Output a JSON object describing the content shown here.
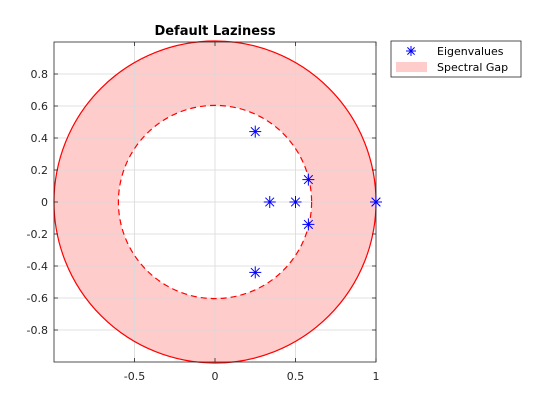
{
  "chart_data": {
    "type": "scatter",
    "title": "Default Laziness",
    "xlabel": "",
    "ylabel": "",
    "xlim": [
      -1,
      1
    ],
    "ylim": [
      -1,
      1
    ],
    "xticks": [
      -0.5,
      0,
      0.5,
      1
    ],
    "xtick_labels": [
      "-0.5",
      "0",
      "0.5",
      "1"
    ],
    "yticks": [
      0.8,
      0.6,
      0.4,
      0.2,
      0,
      -0.2,
      -0.4,
      -0.6,
      -0.8
    ],
    "ytick_labels": [
      "0.8",
      "0.6",
      "0.4",
      "0.2",
      "0",
      "-0.2",
      "-0.4",
      "-0.6",
      "-0.8"
    ],
    "grid": true,
    "legend_position": "outside-top-right",
    "series": [
      {
        "name": "Eigenvalues",
        "marker": "asterisk",
        "color": "#0000ff",
        "points": [
          {
            "x": 0.25,
            "y": 0.44
          },
          {
            "x": 0.34,
            "y": 0.0
          },
          {
            "x": 0.5,
            "y": 0.0
          },
          {
            "x": 0.58,
            "y": 0.14
          },
          {
            "x": 0.58,
            "y": -0.14
          },
          {
            "x": 0.25,
            "y": -0.44
          },
          {
            "x": 1.0,
            "y": 0.0
          },
          {
            "x": 1.0,
            "y": 0.0
          }
        ]
      }
    ],
    "spectral_gap": {
      "name": "Spectral Gap",
      "inner_radius": 0.6,
      "outer_radius": 1.0,
      "fill_color": "#ffcccc",
      "edge_color": "#ff0000"
    }
  }
}
